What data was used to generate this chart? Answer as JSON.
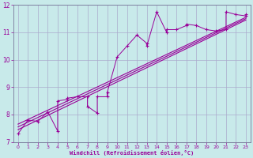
{
  "xlabel": "Windchill (Refroidissement éolien,°C)",
  "bg_color": "#c8eaea",
  "grid_color": "#aaaacc",
  "line_color": "#990099",
  "xlim": [
    -0.5,
    23.5
  ],
  "ylim": [
    7,
    12
  ],
  "xticks": [
    0,
    1,
    2,
    3,
    4,
    5,
    6,
    7,
    8,
    9,
    10,
    11,
    12,
    13,
    14,
    15,
    16,
    17,
    18,
    19,
    20,
    21,
    22,
    23
  ],
  "yticks": [
    7,
    8,
    9,
    10,
    11,
    12
  ],
  "scatter_x": [
    0,
    1,
    2,
    3,
    4,
    4,
    5,
    5,
    6,
    7,
    7,
    8,
    8,
    9,
    9,
    10,
    11,
    12,
    13,
    13,
    14,
    15,
    15,
    16,
    17,
    17,
    18,
    19,
    20,
    21,
    21,
    22,
    23,
    23
  ],
  "scatter_y": [
    7.3,
    7.8,
    7.75,
    8.1,
    7.4,
    8.5,
    8.55,
    8.6,
    8.65,
    8.65,
    8.3,
    8.05,
    8.65,
    8.65,
    8.8,
    10.1,
    10.5,
    10.9,
    10.6,
    10.5,
    11.75,
    11.0,
    11.1,
    11.1,
    11.25,
    11.3,
    11.25,
    11.1,
    11.05,
    11.1,
    11.75,
    11.65,
    11.6,
    11.65
  ],
  "reg_lines": [
    {
      "x": [
        0,
        23
      ],
      "y": [
        7.45,
        11.45
      ]
    },
    {
      "x": [
        0,
        23
      ],
      "y": [
        7.65,
        11.55
      ]
    },
    {
      "x": [
        0,
        23
      ],
      "y": [
        7.55,
        11.5
      ]
    }
  ]
}
